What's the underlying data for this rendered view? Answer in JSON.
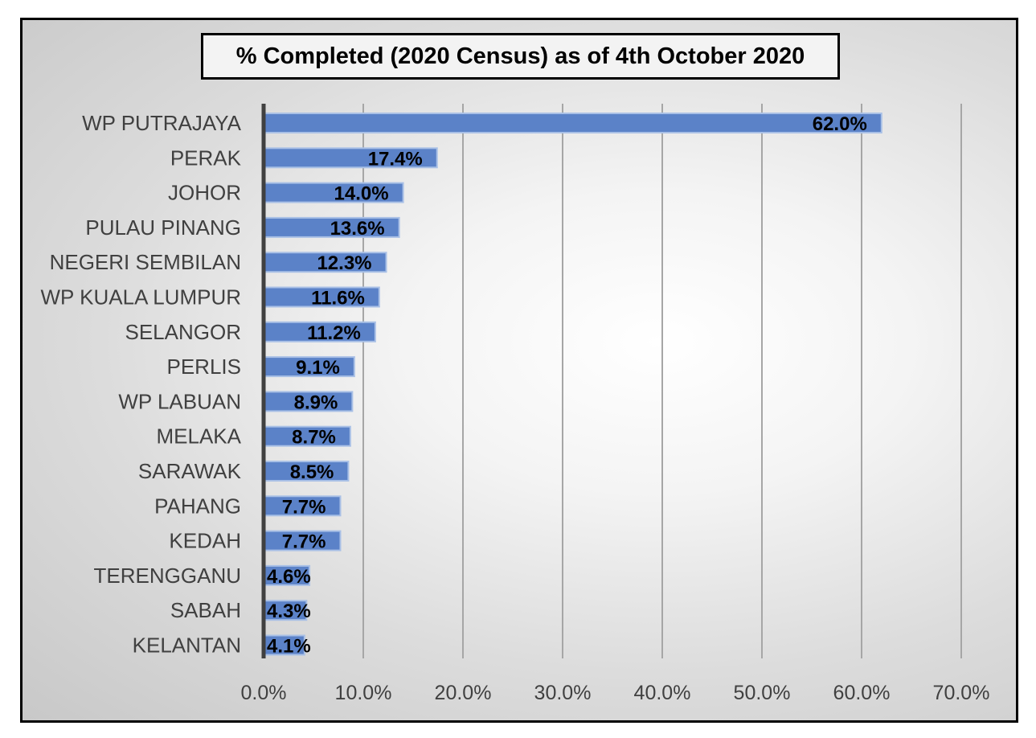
{
  "chart_data": {
    "type": "bar",
    "orientation": "horizontal",
    "title": "% Completed (2020 Census) as of 4th October 2020",
    "categories": [
      "WP PUTRAJAYA",
      "PERAK",
      "JOHOR",
      "PULAU PINANG",
      "NEGERI SEMBILAN",
      "WP KUALA LUMPUR",
      "SELANGOR",
      "PERLIS",
      "WP LABUAN",
      "MELAKA",
      "SARAWAK",
      "PAHANG",
      "KEDAH",
      "TERENGGANU",
      "SABAH",
      "KELANTAN"
    ],
    "values": [
      62.0,
      17.4,
      14.0,
      13.6,
      12.3,
      11.6,
      11.2,
      9.1,
      8.9,
      8.7,
      8.5,
      7.7,
      7.7,
      4.6,
      4.3,
      4.1
    ],
    "data_labels": [
      "62.0%",
      "17.4%",
      "14.0%",
      "13.6%",
      "12.3%",
      "11.6%",
      "11.2%",
      "9.1%",
      "8.9%",
      "8.7%",
      "8.5%",
      "7.7%",
      "7.7%",
      "4.6%",
      "4.3%",
      "4.1%"
    ],
    "x_ticks": [
      "0.0%",
      "10.0%",
      "20.0%",
      "30.0%",
      "40.0%",
      "50.0%",
      "60.0%",
      "70.0%"
    ],
    "xlim": [
      0,
      70
    ],
    "xlabel": "",
    "ylabel": "",
    "grid": "vertical",
    "legend": "none",
    "colors": {
      "bar": "#5b82c8",
      "bar_edge": "#a9c0e6",
      "gridline": "#a6a6a6",
      "axis": "#404040"
    }
  }
}
